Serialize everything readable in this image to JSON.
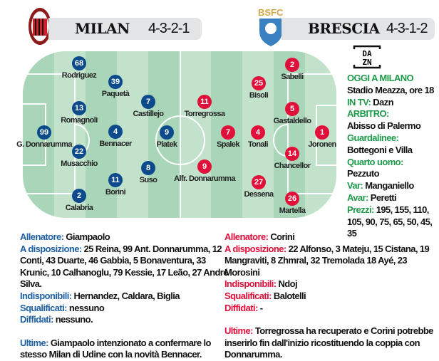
{
  "home": {
    "team": "MILAN",
    "formation": "4-3-2-1",
    "logo_text": "ACM 1899",
    "color": "#0c4a8c"
  },
  "away": {
    "team": "BRESCIA",
    "formation": "4-3-1-2",
    "logo_text": "BSFC",
    "color": "#e0103a"
  },
  "home_players": [
    {
      "num": "68",
      "name": "Rodriguez"
    },
    {
      "num": "39",
      "name": "Paquetà"
    },
    {
      "num": "13",
      "name": "Romagnoli"
    },
    {
      "num": "99",
      "name": "G. Donnarumma"
    },
    {
      "num": "22",
      "name": "Musacchio"
    },
    {
      "num": "4",
      "name": "Bennacer"
    },
    {
      "num": "11",
      "name": "Borini"
    },
    {
      "num": "2",
      "name": "Calabria"
    },
    {
      "num": "7",
      "name": "Castillejo"
    },
    {
      "num": "9",
      "name": "Piatek"
    },
    {
      "num": "8",
      "name": "Suso"
    }
  ],
  "away_players": [
    {
      "num": "11",
      "name": "Torregrossa"
    },
    {
      "num": "9",
      "name": "Alfr. Donnarumma"
    },
    {
      "num": "7",
      "name": "Spalek"
    },
    {
      "num": "25",
      "name": "Bisoli"
    },
    {
      "num": "4",
      "name": "Tonali"
    },
    {
      "num": "27",
      "name": "Dessena"
    },
    {
      "num": "2",
      "name": "Sabelli"
    },
    {
      "num": "5",
      "name": "Gastaldello"
    },
    {
      "num": "14",
      "name": "Chancellor"
    },
    {
      "num": "26",
      "name": "Martella"
    },
    {
      "num": "1",
      "name": "Joronen"
    }
  ],
  "info": {
    "tv_logo": "DAZN",
    "where_label": "OGGI A MILANO",
    "where": "Stadio Meazza, ore 18",
    "tv_label": "IN TV:",
    "tv": "Dazn",
    "ref_label": "ARBITRO:",
    "ref": "Abisso di Palermo",
    "lines_label": "Guardalinee:",
    "lines": "Bottegoni e Villa",
    "fourth_label": "Quarto uomo:",
    "fourth": "Pezzuto",
    "var_label": "Var:",
    "var": "Manganiello",
    "avar_label": "Avar:",
    "avar": "Peretti",
    "prices_label": "Prezzi:",
    "prices": "195, 155, 110, 105, 90, 75, 65, 50, 45, 35"
  },
  "home_notes": {
    "coach_label": "Allenatore:",
    "coach": "Giampaolo",
    "bench_label": "A disposizione:",
    "bench": "25 Reina, 99 Ant. Donnarumma, 12 Conti, 43 Duarte, 46 Gabbia, 5 Bonaventura, 33 Krunic, 10 Calhanoglu, 79 Kessie, 17 Leão, 27 André Silva.",
    "unavail_label": "Indisponibili:",
    "unavail": "Hernandez, Caldara, Biglia",
    "susp_label": "Squalificati:",
    "susp": "nessuno",
    "warned_label": "Diffidati:",
    "warned": "nessuno.",
    "news_label": "Ultime:",
    "news": "Giampaolo intenzionato a confermare lo stesso Milan di Udine con la novità Bennacer."
  },
  "away_notes": {
    "coach_label": "Allenatore:",
    "coach": "Corini",
    "bench_label": "A disposizione:",
    "bench": "22 Alfonso, 3 Mateju, 15 Cistana, 19 Mangraviti, 8 Zhmral, 32 Tremolada 18 Ayé, 23 Morosini",
    "unavail_label": "Indisponibili:",
    "unavail": "Ndoj",
    "susp_label": "Squalificati:",
    "susp": "Balotelli",
    "warned_label": "Diffidati:",
    "warned": "-",
    "news_label": "Ultime:",
    "news": "Torregrossa ha recuperato e Corini potrebbe inserirlo fin dall'inizio ricostituendo la coppia con Donnarumma."
  }
}
